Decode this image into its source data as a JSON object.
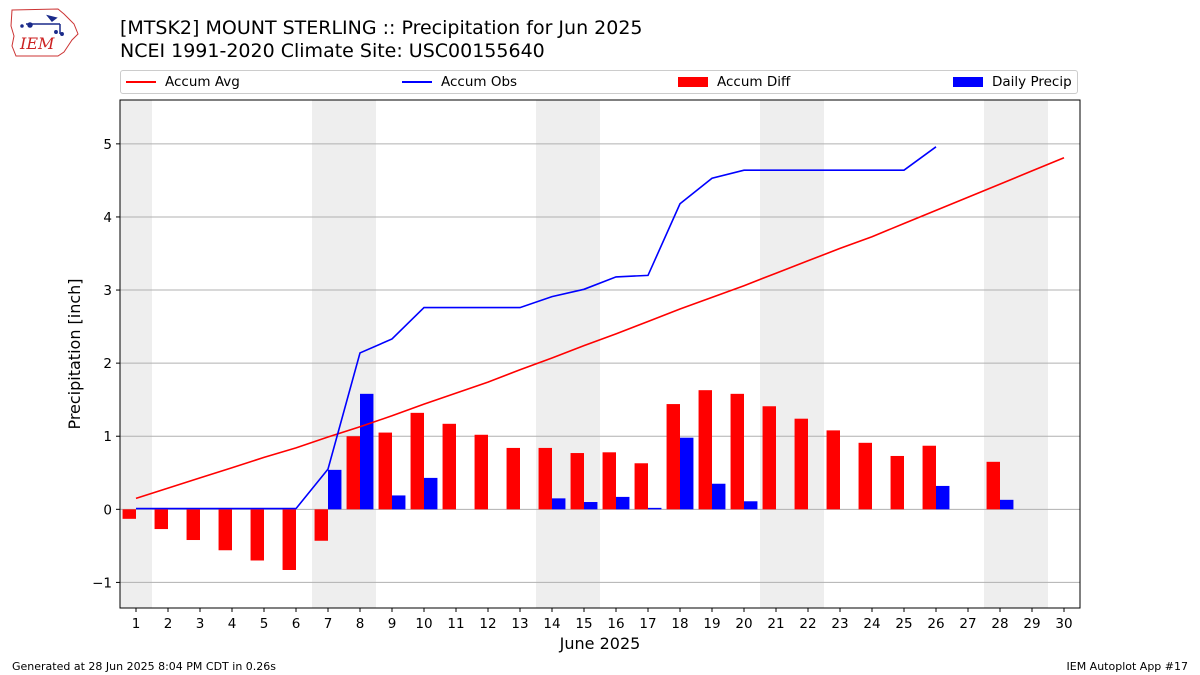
{
  "header": {
    "title_line1": "[MTSK2] MOUNT STERLING :: Precipitation for Jun 2025",
    "title_line2": "NCEI 1991-2020 Climate Site: USC00155640"
  },
  "logo": {
    "text": "IEM"
  },
  "legend": [
    {
      "label": "Accum Avg",
      "kind": "line",
      "color": "#ff0000"
    },
    {
      "label": "Accum Obs",
      "kind": "line",
      "color": "#0000ff"
    },
    {
      "label": "Accum Diff",
      "kind": "bar",
      "color": "#ff0000"
    },
    {
      "label": "Daily Precip",
      "kind": "bar",
      "color": "#0000ff"
    }
  ],
  "footer": {
    "left": "Generated at 28 Jun 2025 8:04 PM CDT in 0.26s",
    "right": "IEM Autoplot App #17"
  },
  "chart_data": {
    "type": "bar",
    "xlabel": "June 2025",
    "ylabel": "Precipitation [inch]",
    "ylim": [
      -1.35,
      5.6
    ],
    "y_ticks": [
      -1,
      0,
      1,
      2,
      3,
      4,
      5
    ],
    "y_tick_labels": [
      "−1",
      "0",
      "1",
      "2",
      "3",
      "4",
      "5"
    ],
    "x": [
      1,
      2,
      3,
      4,
      5,
      6,
      7,
      8,
      9,
      10,
      11,
      12,
      13,
      14,
      15,
      16,
      17,
      18,
      19,
      20,
      21,
      22,
      23,
      24,
      25,
      26,
      27,
      28,
      29,
      30
    ],
    "grid": "horizontal",
    "weekend_shading": [
      [
        1,
        1
      ],
      [
        7,
        8
      ],
      [
        14,
        15
      ],
      [
        21,
        22
      ],
      [
        28,
        29
      ]
    ],
    "shade_color": "#eeeeee",
    "series": [
      {
        "name": "Accum Avg",
        "kind": "line",
        "color": "#ff0000",
        "x": [
          1,
          2,
          3,
          4,
          5,
          6,
          7,
          8,
          9,
          10,
          11,
          12,
          13,
          14,
          15,
          16,
          17,
          18,
          19,
          20,
          21,
          22,
          23,
          24,
          25,
          26,
          27,
          28,
          29,
          30
        ],
        "values": [
          0.15,
          0.29,
          0.43,
          0.57,
          0.71,
          0.84,
          0.99,
          1.13,
          1.28,
          1.44,
          1.59,
          1.74,
          1.91,
          2.07,
          2.24,
          2.4,
          2.57,
          2.74,
          2.9,
          3.06,
          3.23,
          3.4,
          3.57,
          3.73,
          3.91,
          4.09,
          4.27,
          4.45,
          4.63,
          4.81
        ]
      },
      {
        "name": "Accum Obs",
        "kind": "line",
        "color": "#0000ff",
        "x": [
          1,
          2,
          3,
          4,
          5,
          6,
          7,
          8,
          9,
          10,
          11,
          12,
          13,
          14,
          15,
          16,
          17,
          18,
          19,
          20,
          21,
          22,
          23,
          24,
          25,
          26
        ],
        "values": [
          0.01,
          0.01,
          0.01,
          0.01,
          0.01,
          0.01,
          0.55,
          2.14,
          2.33,
          2.76,
          2.76,
          2.76,
          2.76,
          2.91,
          3.01,
          3.18,
          3.2,
          4.18,
          4.53,
          4.64,
          4.64,
          4.64,
          4.64,
          4.64,
          4.64,
          4.96
        ]
      },
      {
        "name": "Accum Diff",
        "kind": "bar",
        "color": "#ff0000",
        "x": [
          1,
          2,
          3,
          4,
          5,
          6,
          7,
          8,
          9,
          10,
          11,
          12,
          13,
          14,
          15,
          16,
          17,
          18,
          19,
          20,
          21,
          22,
          23,
          24,
          25,
          26,
          28
        ],
        "values": [
          -0.13,
          -0.27,
          -0.42,
          -0.56,
          -0.7,
          -0.83,
          -0.43,
          1.0,
          1.05,
          1.32,
          1.17,
          1.02,
          0.84,
          0.84,
          0.77,
          0.78,
          0.63,
          1.44,
          1.63,
          1.58,
          1.41,
          1.24,
          1.08,
          0.91,
          0.73,
          0.87,
          0.65
        ]
      },
      {
        "name": "Daily Precip",
        "kind": "bar",
        "color": "#0000ff",
        "x": [
          7,
          8,
          9,
          10,
          14,
          15,
          16,
          17,
          18,
          19,
          20,
          26,
          28
        ],
        "values": [
          0.54,
          1.58,
          0.19,
          0.43,
          0.15,
          0.1,
          0.17,
          0.02,
          0.98,
          0.35,
          0.11,
          0.32,
          0.13
        ]
      }
    ]
  }
}
